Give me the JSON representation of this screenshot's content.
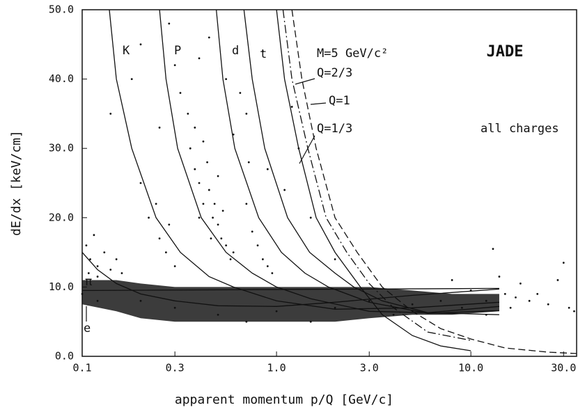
{
  "chart_data": {
    "type": "scatter",
    "xlabel": "apparent momentum p/Q [GeV/c]",
    "ylabel": "dE/dx [keV/cm]",
    "xscale": "log",
    "xlim": [
      0.1,
      35
    ],
    "ylim": [
      0,
      50
    ],
    "xticks": [
      0.1,
      0.3,
      {
        "value": 1,
        "label": "1.0"
      },
      {
        "value": 3,
        "label": "3.0"
      },
      {
        "value": 10,
        "label": "10.0"
      },
      {
        "value": 30,
        "label": "30.0"
      }
    ],
    "yticks": [
      {
        "value": 0,
        "label": "0.0"
      },
      {
        "value": 10,
        "label": "10.0"
      },
      {
        "value": 20,
        "label": "20.0"
      },
      {
        "value": 30,
        "label": "30.0"
      },
      {
        "value": 40,
        "label": "40.0"
      },
      {
        "value": 50,
        "label": "50.0"
      }
    ],
    "annotations": {
      "experiment": "JADE",
      "mass": "M=5 GeV/c²",
      "q23": "Q=2/3",
      "q1": "Q=1",
      "q13": "Q=1/3",
      "charges": "all charges",
      "pi": "π",
      "e": "e",
      "K": "K",
      "p": "P",
      "d": "d",
      "t": "t"
    },
    "color": "#111111",
    "band": {
      "x": [
        0.1,
        0.15,
        0.2,
        0.3,
        0.5,
        1,
        2,
        3,
        5,
        8,
        14
      ],
      "upper": [
        11,
        11,
        10.5,
        10,
        10,
        10,
        10,
        10,
        9.5,
        9,
        9
      ],
      "lower": [
        7.5,
        6.5,
        5.5,
        5,
        5,
        5,
        5,
        5.5,
        6,
        6,
        6.5
      ]
    },
    "points": {
      "x": [
        0.105,
        0.11,
        0.115,
        0.12,
        0.13,
        0.14,
        0.15,
        0.16,
        0.12,
        0.108,
        0.36,
        0.38,
        0.4,
        0.42,
        0.45,
        0.47,
        0.5,
        0.52,
        0.55,
        0.44,
        0.48,
        0.5,
        0.4,
        0.58,
        0.6,
        0.38,
        0.35,
        0.46,
        0.53,
        0.42,
        0.2,
        0.22,
        0.25,
        0.27,
        0.3,
        0.24,
        0.28,
        0.7,
        0.75,
        0.8,
        0.85,
        0.9,
        0.72,
        0.95,
        0.14,
        0.2,
        0.28,
        0.3,
        0.45,
        0.55,
        0.65,
        0.85,
        1.2,
        0.25,
        0.32,
        0.6,
        0.9,
        1.1,
        1.5,
        0.18,
        0.4,
        0.7,
        1.3,
        2,
        8,
        10,
        12,
        13,
        15,
        17,
        20,
        25,
        28,
        30,
        32,
        34,
        18,
        22,
        12,
        16,
        14,
        0.1,
        0.12,
        0.2,
        0.3,
        0.5,
        1,
        2,
        3,
        5,
        7,
        0.7,
        1.5,
        4,
        9
      ],
      "y": [
        16,
        14,
        17.5,
        13,
        15,
        12.5,
        14,
        12,
        11.5,
        12,
        30,
        27,
        25,
        22,
        24,
        20,
        19,
        17,
        16,
        28,
        22,
        26,
        20,
        14,
        15,
        33,
        35,
        17,
        21,
        31,
        25,
        20,
        17,
        15,
        13,
        22,
        19,
        22,
        18,
        16,
        14,
        13,
        28,
        12,
        35,
        45,
        48,
        42,
        46,
        40,
        38,
        44,
        36,
        33,
        38,
        32,
        27,
        24,
        20,
        40,
        43,
        35,
        30,
        14,
        11,
        9.5,
        8,
        15.5,
        9,
        8.5,
        8,
        7.5,
        11,
        13.5,
        7,
        6.5,
        10.5,
        9,
        6,
        7,
        11.5,
        9,
        8,
        8,
        7,
        6,
        6.5,
        7,
        8,
        7.5,
        8,
        5,
        5,
        6,
        7
      ]
    },
    "series": [
      {
        "name": "e",
        "dash": "solid",
        "x": [
          0.1,
          14
        ],
        "values": [
          9.5,
          9.8
        ]
      },
      {
        "name": "π",
        "dash": "solid",
        "x": [
          0.1,
          0.12,
          0.15,
          0.2,
          0.3,
          0.5,
          1,
          2,
          5,
          14
        ],
        "values": [
          15,
          12.5,
          10.5,
          9,
          8,
          7.3,
          7.2,
          7.8,
          8.8,
          9.7
        ]
      },
      {
        "name": "K",
        "dash": "solid",
        "x": [
          0.138,
          0.15,
          0.18,
          0.24,
          0.32,
          0.45,
          0.6,
          1,
          2,
          5,
          14
        ],
        "values": [
          50,
          40,
          30,
          20,
          15,
          11.5,
          10,
          8,
          6.8,
          7,
          7.8
        ]
      },
      {
        "name": "P",
        "dash": "solid",
        "x": [
          0.25,
          0.27,
          0.31,
          0.41,
          0.55,
          0.75,
          1.0,
          1.5,
          3,
          6,
          14
        ],
        "values": [
          50,
          40,
          30,
          20,
          15,
          12,
          10,
          8.3,
          6.5,
          6.3,
          7.2
        ]
      },
      {
        "name": "d",
        "dash": "solid",
        "x": [
          0.49,
          0.53,
          0.61,
          0.81,
          1.06,
          1.4,
          1.85,
          3,
          6,
          14
        ],
        "values": [
          50,
          40,
          30,
          20,
          15,
          12,
          10,
          7.8,
          6.2,
          6.6
        ]
      },
      {
        "name": "t",
        "dash": "solid",
        "x": [
          0.68,
          0.75,
          0.87,
          1.14,
          1.48,
          2,
          2.5,
          3.5,
          6,
          14
        ],
        "values": [
          50,
          40,
          30,
          20,
          15,
          12,
          10,
          8,
          6.3,
          6
        ]
      },
      {
        "name": "Q=1/3",
        "dash": "solid",
        "x": [
          1.0,
          1.1,
          1.3,
          1.6,
          2,
          2.7,
          3.5,
          5,
          7,
          10
        ],
        "values": [
          50,
          40,
          30,
          20,
          15,
          10,
          6,
          3,
          1.5,
          0.8
        ]
      },
      {
        "name": "Q=2/3",
        "dash": "dashdot",
        "x": [
          1.08,
          1.2,
          1.45,
          1.8,
          2.3,
          3,
          4,
          6,
          10
        ],
        "values": [
          50,
          40,
          30,
          20,
          15,
          10.5,
          7,
          3.5,
          2.3
        ]
      },
      {
        "name": "Q=1",
        "dash": "dashed",
        "x": [
          1.2,
          1.35,
          1.6,
          2,
          2.6,
          3.5,
          5,
          7,
          10,
          15,
          25,
          35
        ],
        "values": [
          50,
          40,
          30,
          20,
          15,
          10,
          6.5,
          4,
          2.5,
          1.2,
          0.6,
          0.4
        ]
      }
    ]
  }
}
